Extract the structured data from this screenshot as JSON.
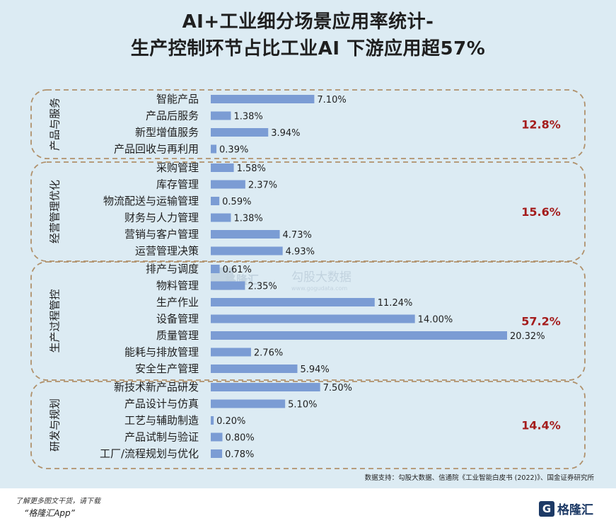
{
  "title": {
    "line1": "AI+工业细分场景应用率统计-",
    "line2": "生产控制环节占比工业AI 下游应用超57%"
  },
  "source": "数据支持：勾股大数据、信通院《工业智能白皮书 (2022)》、国金证券研究所",
  "watermark": {
    "brand": "格隆汇",
    "name": "勾股大数据",
    "url": "www.gogudata.com"
  },
  "footer": {
    "line1": "了解更多图文干货，请下载",
    "line2": "“格隆汇App”",
    "brand": "格隆汇",
    "logo_letter": "G"
  },
  "colors": {
    "bar": "#7b9cd4",
    "group_total": "#a41c1c",
    "border": "#b0916c"
  },
  "chart_data": {
    "type": "bar",
    "orientation": "horizontal",
    "value_format": "percent",
    "groups": [
      {
        "name": "产品与服务",
        "total": "12.8%",
        "items": [
          {
            "label": "智能产品",
            "value": 7.1
          },
          {
            "label": "产品后服务",
            "value": 1.38
          },
          {
            "label": "新型增值服务",
            "value": 3.94
          },
          {
            "label": "产品回收与再利用",
            "value": 0.39
          }
        ]
      },
      {
        "name": "经营管理优化",
        "total": "15.6%",
        "items": [
          {
            "label": "采购管理",
            "value": 1.58
          },
          {
            "label": "库存管理",
            "value": 2.37
          },
          {
            "label": "物流配送与运输管理",
            "value": 0.59
          },
          {
            "label": "财务与人力管理",
            "value": 1.38
          },
          {
            "label": "营销与客户管理",
            "value": 4.73
          },
          {
            "label": "运营管理决策",
            "value": 4.93
          }
        ]
      },
      {
        "name": "生产过程管控",
        "total": "57.2%",
        "items": [
          {
            "label": "排产与调度",
            "value": 0.61
          },
          {
            "label": "物料管理",
            "value": 2.35
          },
          {
            "label": "生产作业",
            "value": 11.24
          },
          {
            "label": "设备管理",
            "value": 14.0
          },
          {
            "label": "质量管理",
            "value": 20.32
          },
          {
            "label": "能耗与排放管理",
            "value": 2.76
          },
          {
            "label": "安全生产管理",
            "value": 5.94
          }
        ]
      },
      {
        "name": "研发与规划",
        "total": "14.4%",
        "items": [
          {
            "label": "新技术新产品研发",
            "value": 7.5
          },
          {
            "label": "产品设计与仿真",
            "value": 5.1
          },
          {
            "label": "工艺与辅助制造",
            "value": 0.2
          },
          {
            "label": "产品试制与验证",
            "value": 0.8
          },
          {
            "label": "工厂/流程规划与优化",
            "value": 0.78
          }
        ]
      }
    ]
  }
}
